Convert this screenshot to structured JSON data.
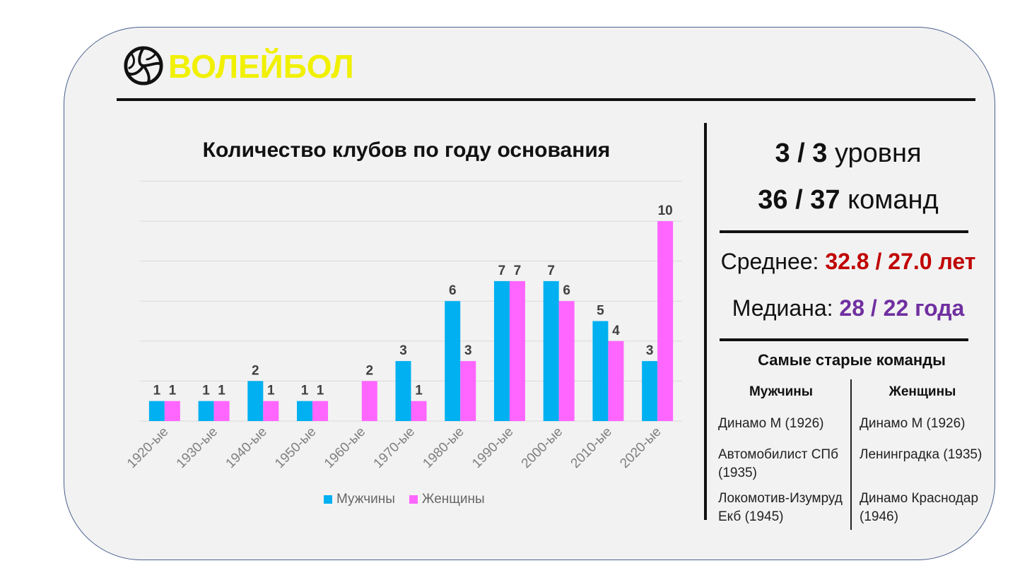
{
  "header": {
    "title": "ВОЛЕЙБОЛ",
    "logo_icon": "volleyball-icon"
  },
  "chart_data": {
    "type": "bar",
    "title": "Количество клубов по году основания",
    "categories": [
      "1920-ые",
      "1930-ые",
      "1940-ые",
      "1950-ые",
      "1960-ые",
      "1970-ые",
      "1980-ые",
      "1990-ые",
      "2000-ые",
      "2010-ые",
      "2020-ые"
    ],
    "series": [
      {
        "name": "Мужчины",
        "color": "#00b0f0",
        "values": [
          1,
          1,
          2,
          1,
          0,
          3,
          6,
          7,
          7,
          5,
          3
        ]
      },
      {
        "name": "Женщины",
        "color": "#ff66ff",
        "values": [
          1,
          1,
          1,
          1,
          2,
          1,
          3,
          7,
          6,
          4,
          10
        ]
      }
    ],
    "ylim": [
      0,
      12
    ],
    "grid": true,
    "legend": "bottom"
  },
  "stats": {
    "levels_value": "3 / 3",
    "levels_label": " уровня",
    "teams_value": "36 / 37",
    "teams_label": " команд",
    "mean_label": "Среднее: ",
    "mean_value": "32.8 / 27.0 лет",
    "mean_color": "#c00000",
    "median_label": "Медиана: ",
    "median_value": "28 / 22 года",
    "median_color": "#7030a0"
  },
  "oldest": {
    "title": "Самые старые команды",
    "men_header": "Мужчины",
    "women_header": "Женщины",
    "men": [
      "Динамо М (1926)",
      "Автомобилист СПб (1935)",
      "Локомотив-Изумруд Екб (1945)"
    ],
    "women": [
      "Динамо М (1926)",
      "Ленинградка (1935)",
      "Динамо Краснодар (1946)"
    ]
  }
}
